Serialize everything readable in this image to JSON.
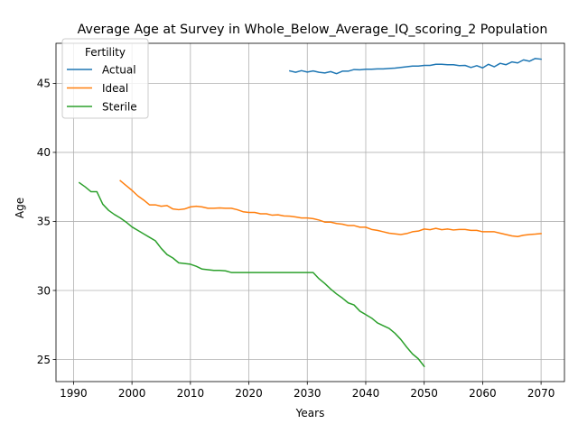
{
  "chart_data": {
    "type": "line",
    "title": "Average Age at Survey in Whole_Below_Average_IQ_scoring_2 Population",
    "xlabel": "Years",
    "ylabel": "Age",
    "xlim": [
      1987,
      2074
    ],
    "ylim": [
      23.4,
      47.9
    ],
    "x_ticks": [
      1990,
      2000,
      2010,
      2020,
      2030,
      2040,
      2050,
      2060,
      2070
    ],
    "y_ticks": [
      25,
      30,
      35,
      40,
      45
    ],
    "grid": true,
    "legend": {
      "title": "Fertility",
      "placement": "top-left"
    },
    "series": [
      {
        "name": "Actual",
        "color": "#1f77b4",
        "x": [
          2027,
          2028,
          2029,
          2030,
          2031,
          2032,
          2033,
          2034,
          2035,
          2036,
          2037,
          2038,
          2039,
          2040,
          2041,
          2042,
          2043,
          2044,
          2045,
          2046,
          2047,
          2048,
          2049,
          2050,
          2051,
          2052,
          2053,
          2054,
          2055,
          2056,
          2057,
          2058,
          2059,
          2060,
          2061,
          2062,
          2063,
          2064,
          2065,
          2066,
          2067,
          2068,
          2069,
          2070
        ],
        "y": [
          45.9,
          45.8,
          45.92,
          45.82,
          45.9,
          45.8,
          45.75,
          45.85,
          45.7,
          45.88,
          45.88,
          46.0,
          45.98,
          46.02,
          46.02,
          46.05,
          46.05,
          46.08,
          46.1,
          46.15,
          46.2,
          46.25,
          46.25,
          46.3,
          46.3,
          46.38,
          46.38,
          46.35,
          46.35,
          46.28,
          46.3,
          46.15,
          46.28,
          46.12,
          46.38,
          46.2,
          46.45,
          46.35,
          46.55,
          46.48,
          46.7,
          46.6,
          46.8,
          46.75
        ]
      },
      {
        "name": "Ideal",
        "color": "#ff7f0e",
        "x": [
          1998,
          1999,
          2000,
          2001,
          2002,
          2003,
          2004,
          2005,
          2006,
          2007,
          2008,
          2009,
          2010,
          2011,
          2012,
          2013,
          2014,
          2015,
          2016,
          2017,
          2018,
          2019,
          2020,
          2021,
          2022,
          2023,
          2024,
          2025,
          2026,
          2027,
          2028,
          2029,
          2030,
          2031,
          2032,
          2033,
          2034,
          2035,
          2036,
          2037,
          2038,
          2039,
          2040,
          2041,
          2042,
          2043,
          2044,
          2045,
          2046,
          2047,
          2048,
          2049,
          2050,
          2051,
          2052,
          2053,
          2054,
          2055,
          2056,
          2057,
          2058,
          2059,
          2060,
          2061,
          2062,
          2063,
          2064,
          2065,
          2066,
          2067,
          2068,
          2069,
          2070
        ],
        "y": [
          37.95,
          37.6,
          37.25,
          36.85,
          36.55,
          36.2,
          36.2,
          36.1,
          36.15,
          35.9,
          35.85,
          35.9,
          36.05,
          36.1,
          36.05,
          35.95,
          35.95,
          35.98,
          35.95,
          35.95,
          35.85,
          35.7,
          35.65,
          35.65,
          35.55,
          35.55,
          35.45,
          35.48,
          35.4,
          35.38,
          35.32,
          35.25,
          35.25,
          35.2,
          35.1,
          34.95,
          34.95,
          34.85,
          34.8,
          34.7,
          34.7,
          34.58,
          34.58,
          34.42,
          34.35,
          34.25,
          34.15,
          34.1,
          34.05,
          34.12,
          34.25,
          34.3,
          34.45,
          34.4,
          34.5,
          34.4,
          34.45,
          34.38,
          34.42,
          34.42,
          34.35,
          34.35,
          34.25,
          34.25,
          34.25,
          34.15,
          34.05,
          33.95,
          33.9,
          34.0,
          34.05,
          34.08,
          34.12
        ]
      },
      {
        "name": "Sterile",
        "color": "#2ca02c",
        "x": [
          1991,
          1992,
          1993,
          1994,
          1995,
          1996,
          1997,
          1998,
          1999,
          2000,
          2001,
          2002,
          2003,
          2004,
          2005,
          2006,
          2007,
          2008,
          2009,
          2010,
          2011,
          2012,
          2013,
          2014,
          2015,
          2016,
          2017,
          2018,
          2019,
          2020,
          2021,
          2022,
          2023,
          2024,
          2025,
          2026,
          2027,
          2028,
          2029,
          2030,
          2031,
          2032,
          2033,
          2034,
          2035,
          2036,
          2037,
          2038,
          2039,
          2040,
          2041,
          2042,
          2043,
          2044,
          2045,
          2046,
          2047,
          2048,
          2049,
          2050
        ],
        "y": [
          37.8,
          37.5,
          37.15,
          37.15,
          36.25,
          35.8,
          35.5,
          35.25,
          34.95,
          34.6,
          34.35,
          34.1,
          33.85,
          33.6,
          33.05,
          32.6,
          32.35,
          32.0,
          31.95,
          31.9,
          31.75,
          31.55,
          31.5,
          31.45,
          31.45,
          31.42,
          31.3,
          31.3,
          31.3,
          31.3,
          31.3,
          31.3,
          31.3,
          31.3,
          31.3,
          31.3,
          31.3,
          31.3,
          31.3,
          31.3,
          31.3,
          30.85,
          30.5,
          30.1,
          29.75,
          29.45,
          29.1,
          28.95,
          28.5,
          28.25,
          28.0,
          27.65,
          27.45,
          27.25,
          26.9,
          26.45,
          25.9,
          25.4,
          25.05,
          24.5
        ]
      }
    ]
  }
}
